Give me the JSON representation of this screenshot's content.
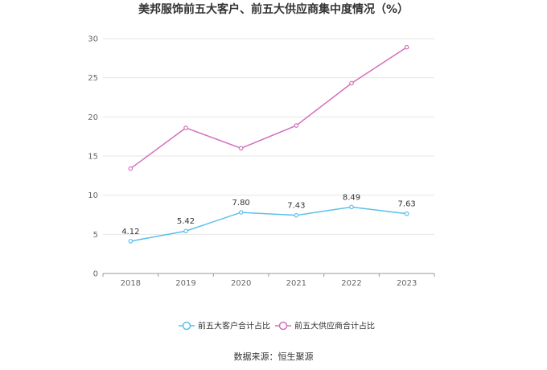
{
  "title": "美邦服饰前五大客户、前五大供应商集中度情况（%）",
  "source": "数据来源：恒生聚源",
  "chart_data": {
    "type": "line",
    "title": "美邦服饰前五大客户、前五大供应商集中度情况（%）",
    "categories": [
      "2018",
      "2019",
      "2020",
      "2021",
      "2022",
      "2023"
    ],
    "yticks": [
      "0",
      "5",
      "10",
      "15",
      "20",
      "25",
      "30"
    ],
    "ylim": [
      0,
      30
    ],
    "grid": true,
    "legend_position": "bottom",
    "series": [
      {
        "name": "前五大客户合计占比",
        "values": [
          4.12,
          5.42,
          7.8,
          7.43,
          8.49,
          7.63
        ],
        "labels": [
          "4.12",
          "5.42",
          "7.80",
          "7.43",
          "8.49",
          "7.63"
        ],
        "color": "#5bc0eb"
      },
      {
        "name": "前五大供应商合计占比",
        "values": [
          13.4,
          18.6,
          16.0,
          18.9,
          24.3,
          28.9
        ],
        "color": "#d36fbe"
      }
    ]
  }
}
